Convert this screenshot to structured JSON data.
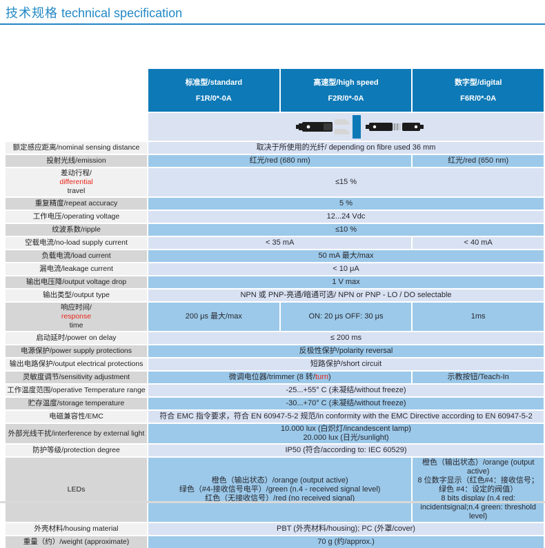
{
  "page": {
    "title_zh": "技术规格",
    "title_en": "technical specification"
  },
  "colors": {
    "title_blue": "#2289c6",
    "header_blue": "#0d79b7",
    "value_light_blue": "#d9e2f3",
    "value_medium_blue": "#9cc9e9",
    "label_light_gray": "#f1f1f1",
    "label_dark_gray": "#d6d6d6",
    "image_row_bg": "#dbe2f1",
    "accent_red": "#e8251a"
  },
  "table": {
    "header": {
      "columns": [
        {
          "type": "标准型/standard",
          "model": "F1R/0*-0A"
        },
        {
          "type": "高速型/high speed",
          "model": "F2R/0*-0A"
        },
        {
          "type": "数字型/digital",
          "model": "F6R/0*-0A"
        }
      ]
    },
    "product_image": {
      "description": "fibre-optic amplifier sensors photo"
    },
    "rows": [
      {
        "shade": "light",
        "label": "额定感应距离/nominal sensing distance",
        "cells": [
          {
            "span": 3,
            "lines": [
              "取决于所使用的光纤/ depending on fibre used 36  mm"
            ]
          }
        ]
      },
      {
        "shade": "dark",
        "label": "投射光线/emission",
        "cells": [
          {
            "span": 2,
            "lines": [
              "红光/red (680 nm)"
            ]
          },
          {
            "span": 1,
            "lines": [
              "红光/red (650 nm)"
            ]
          }
        ]
      },
      {
        "shade": "light",
        "label": [
          {
            "t": "差动行程/"
          },
          {
            "t": "differential",
            "red": true
          },
          {
            "t": " travel"
          }
        ],
        "cells": [
          {
            "span": 3,
            "lines": [
              "≤15 %"
            ]
          }
        ]
      },
      {
        "shade": "dark",
        "label": "重复精度/repeat accuracy",
        "cells": [
          {
            "span": 3,
            "lines": [
              "5 %"
            ]
          }
        ]
      },
      {
        "shade": "light",
        "label": "工作电压/operating voltage",
        "cells": [
          {
            "span": 3,
            "lines": [
              "12...24 Vdc"
            ]
          }
        ]
      },
      {
        "shade": "dark",
        "label": "纹波系数/ripple",
        "cells": [
          {
            "span": 3,
            "lines": [
              "≤10 %"
            ]
          }
        ]
      },
      {
        "shade": "light",
        "label": "空载电流/no-load supply current",
        "cells": [
          {
            "span": 2,
            "lines": [
              "< 35 mA"
            ]
          },
          {
            "span": 1,
            "lines": [
              "< 40 mA"
            ]
          }
        ]
      },
      {
        "shade": "dark",
        "label": "负载电流/load current",
        "cells": [
          {
            "span": 3,
            "lines": [
              "50 mA 最大/max"
            ]
          }
        ]
      },
      {
        "shade": "light",
        "label": "漏电流/leakage current",
        "cells": [
          {
            "span": 3,
            "lines": [
              "< 10 μA"
            ]
          }
        ]
      },
      {
        "shade": "dark",
        "label": "输出电压降/output voltage drop",
        "cells": [
          {
            "span": 3,
            "lines": [
              "1 V max"
            ]
          }
        ]
      },
      {
        "shade": "light",
        "label": "输出类型/output type",
        "cells": [
          {
            "span": 3,
            "lines": [
              "NPN 或 PNP-亮通/暗通可选/ NPN or PNP - LO / DO selectable"
            ]
          }
        ]
      },
      {
        "shade": "dark",
        "label": [
          {
            "t": "响应时间/"
          },
          {
            "t": "response",
            "red": true
          },
          {
            "t": " time"
          }
        ],
        "cells": [
          {
            "span": 1,
            "lines": [
              "200 μs 最大/max"
            ]
          },
          {
            "span": 1,
            "lines": [
              "ON: 20 μs OFF: 30 μs"
            ]
          },
          {
            "span": 1,
            "lines": [
              "1ms"
            ]
          }
        ]
      },
      {
        "shade": "light",
        "label": "启动延时/power on delay",
        "cells": [
          {
            "span": 3,
            "lines": [
              "≤ 200 ms"
            ]
          }
        ]
      },
      {
        "shade": "dark",
        "label": "电源保护/power supply protections",
        "cells": [
          {
            "span": 3,
            "lines": [
              "反极性保护/polarity reversal"
            ]
          }
        ]
      },
      {
        "shade": "light",
        "label": "输出电路保护/output electrical protections",
        "cells": [
          {
            "span": 3,
            "lines": [
              "短路保护/short circuit"
            ]
          }
        ]
      },
      {
        "shade": "dark",
        "label": "灵敏度调节/sensitivity adjustment",
        "cells": [
          {
            "span": 2,
            "lines": [
              [
                {
                  "t": "微调电位器/trimmer (8 转/"
                },
                {
                  "t": "turn",
                  "red": true
                },
                {
                  "t": ")"
                }
              ]
            ]
          },
          {
            "span": 1,
            "lines": [
              "示教按钮/Teach-In"
            ]
          }
        ]
      },
      {
        "shade": "light",
        "label": "工作温度范围/operative Temperature range",
        "cells": [
          {
            "span": 3,
            "lines": [
              "-25...+55° C (未凝结/without freeze)"
            ]
          }
        ]
      },
      {
        "shade": "dark",
        "label": "贮存温度/storage temperature",
        "cells": [
          {
            "span": 3,
            "lines": [
              "-30...+70° C (未凝结/without freeze)"
            ]
          }
        ]
      },
      {
        "shade": "light",
        "label": "电磁兼容性/EMC",
        "cells": [
          {
            "span": 3,
            "lines": [
              "符合 EMC 指令要求，符合 EN 60947-5-2 规范/in conformity with the EMC Directive according to EN 60947-5-2"
            ]
          }
        ]
      },
      {
        "shade": "dark",
        "label": "外部光线干扰/interference by external light",
        "cells": [
          {
            "span": 3,
            "lines": [
              "10.000 lux (白炽灯/incandescent lamp)",
              "20.000 lux (日光/sunlight)"
            ]
          }
        ]
      },
      {
        "shade": "light",
        "label": "防护等级/protection degree",
        "cells": [
          {
            "span": 3,
            "lines": [
              "IP50 (符合/according to:  IEC 60529)"
            ]
          }
        ]
      },
      {
        "shade": "dark",
        "label": "LEDs",
        "cells": [
          {
            "span": 2,
            "lines": [
              "橙色（输出状态）/orange (output active)",
              "绿色（#4-接收信号电平）/green (n.4 - received signal  level)",
              "红色（无接收信号）/red (no received signal)"
            ]
          },
          {
            "span": 1,
            "lines": [
              "橙色（输出状态）/orange (output active)",
              "8 位数字显示（红色#4：接收信号；绿色 #4：设定的阀值）",
              "8 bits display (n.4 red:  incidentsignal;n.4 green: threshold level)"
            ]
          }
        ]
      },
      {
        "shade": "light",
        "label": "外壳材料/housing material",
        "cells": [
          {
            "span": 3,
            "lines": [
              "PBT (外壳材料/housing); PC (外罩/cover)"
            ]
          }
        ]
      },
      {
        "shade": "dark",
        "label": "重量（约）/weight (approximate)",
        "cells": [
          {
            "span": 3,
            "lines": [
              "70 g (约/approx.)"
            ]
          }
        ]
      }
    ]
  }
}
